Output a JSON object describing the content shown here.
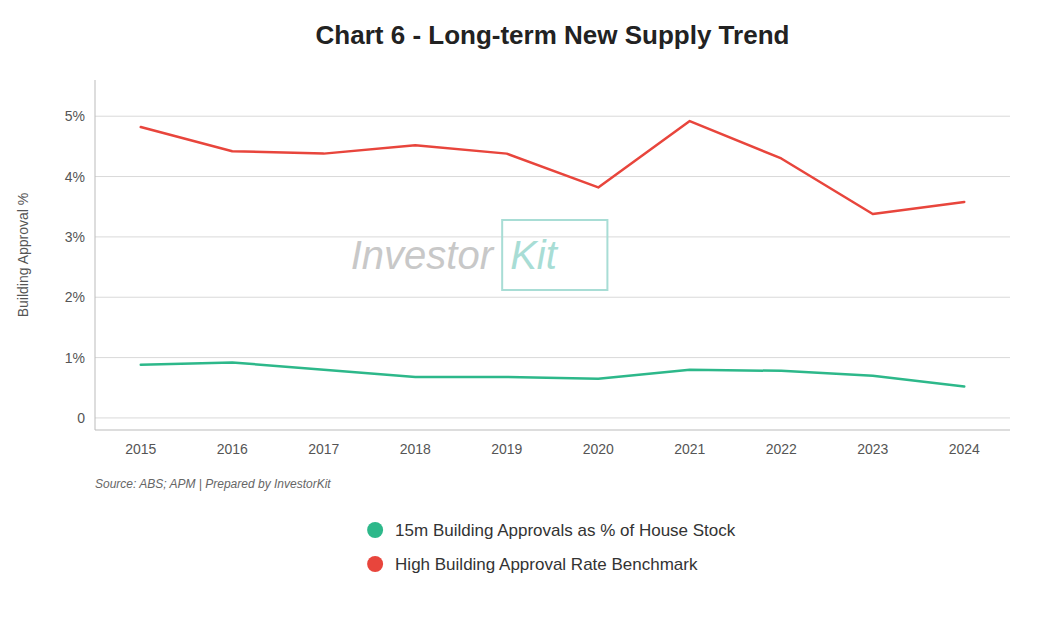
{
  "chart_data": {
    "type": "line",
    "title": "Chart 6 - Long-term New Supply Trend",
    "y_label": "Building Approval %",
    "x": [
      2015,
      2016,
      2017,
      2018,
      2019,
      2020,
      2021,
      2022,
      2023,
      2024
    ],
    "series": [
      {
        "name": "15m Building Approvals as % of House Stock",
        "color": "#2db88a",
        "values": [
          0.88,
          0.92,
          0.8,
          0.68,
          0.68,
          0.65,
          0.8,
          0.78,
          0.7,
          0.52
        ]
      },
      {
        "name": "High Building Approval Rate Benchmark",
        "color": "#e8453c",
        "values": [
          4.82,
          4.42,
          4.38,
          4.52,
          4.38,
          3.82,
          4.92,
          4.3,
          3.38,
          3.58
        ]
      }
    ],
    "xlim": [
      2014.5,
      2024.5
    ],
    "xticks": [
      2015,
      2016,
      2017,
      2018,
      2019,
      2020,
      2021,
      2022,
      2023,
      2024
    ],
    "ylim": [
      -0.2,
      5.6
    ],
    "yticks": [
      0,
      {
        "value": 1,
        "label": "1%"
      },
      {
        "value": 2,
        "label": "2%"
      },
      {
        "value": 3,
        "label": "3%"
      },
      {
        "value": 4,
        "label": "4%"
      },
      {
        "value": 5,
        "label": "5%"
      }
    ],
    "grid": true,
    "legend": "bottom",
    "annotations": [
      "Source: ABS; APM | Prepared by InvestorKit",
      "Investor",
      "Kit"
    ]
  }
}
